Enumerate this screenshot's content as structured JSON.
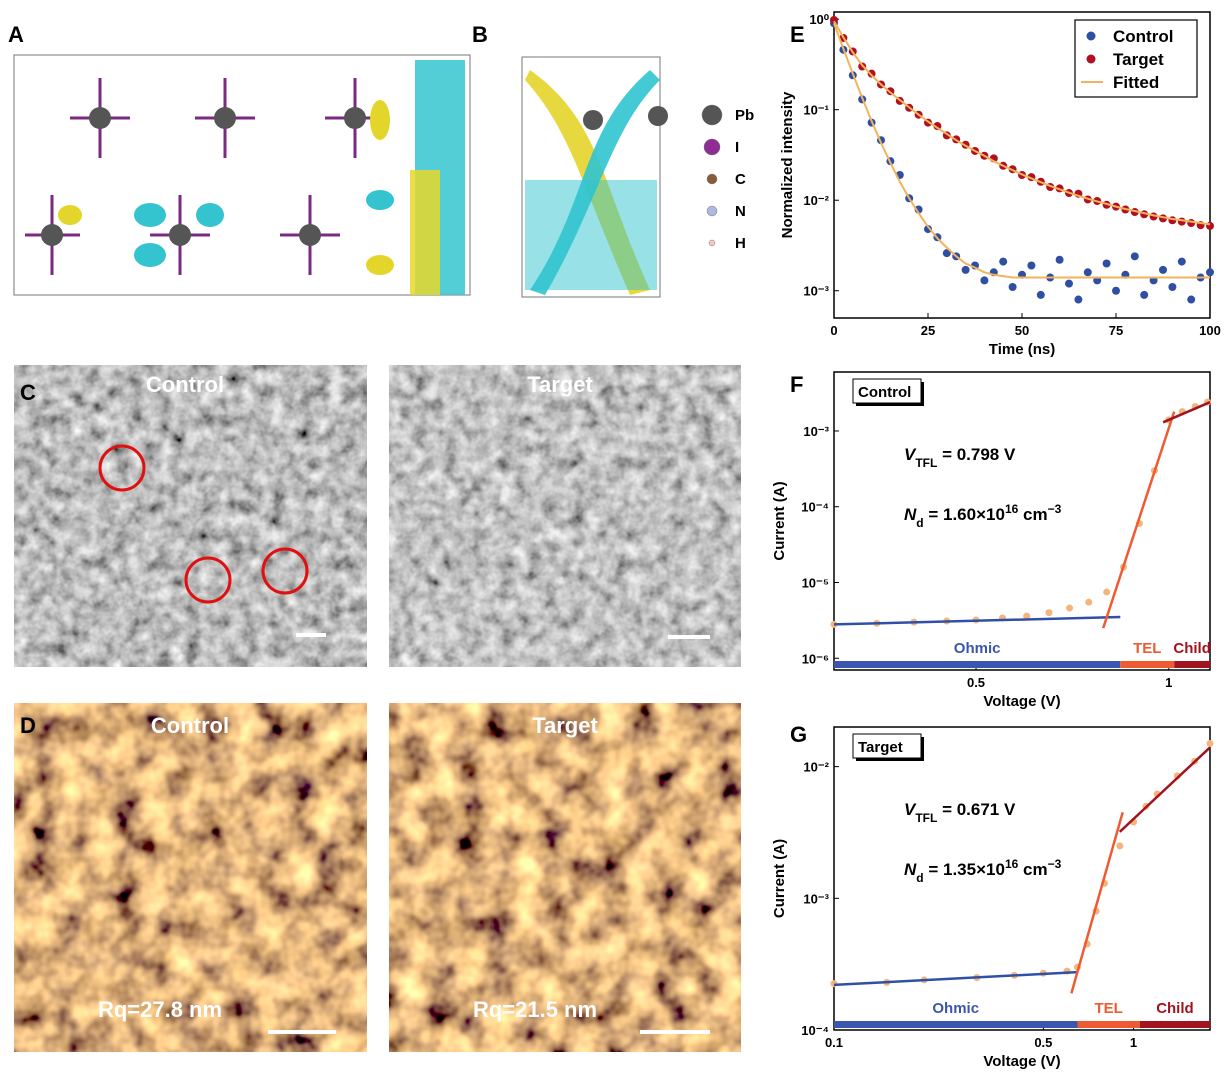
{
  "panel_labels": [
    "A",
    "B",
    "C",
    "D",
    "E",
    "F",
    "G"
  ],
  "structure_legend": [
    "Pb",
    "I",
    "C",
    "N",
    "H"
  ],
  "sem": {
    "images": [
      {
        "label": "Control"
      },
      {
        "label": "Target"
      }
    ]
  },
  "afm": {
    "images": [
      {
        "label": "Control",
        "roughness": "Rq=27.8 nm"
      },
      {
        "label": "Target",
        "roughness": "Rq=21.5 nm"
      }
    ]
  },
  "chart_data": [
    {
      "type": "scatter",
      "x_label": "Time (ns)",
      "y_label": "Normalized intensity",
      "log_y": true,
      "xlim": [
        0,
        100
      ],
      "ylim": [
        0.0005,
        1.2
      ],
      "xticks": [
        0,
        25,
        50,
        75,
        100
      ],
      "yticks": [
        {
          "value": 0.001,
          "label": "10⁻³"
        },
        {
          "value": 0.01,
          "label": "10⁻²"
        },
        {
          "value": 0.1,
          "label": "10⁻¹"
        },
        {
          "value": 1,
          "label": "10⁰"
        }
      ],
      "legend": "upper right",
      "fit_name": "Fitted",
      "fit_color": "#f2b35c",
      "x": [
        0,
        2.5,
        5,
        7.5,
        10,
        12.5,
        15,
        17.5,
        20,
        22.5,
        25,
        27.5,
        30,
        32.5,
        35,
        37.5,
        40,
        42.5,
        45,
        47.5,
        50,
        52.5,
        55,
        57.5,
        60,
        62.5,
        65,
        67.5,
        70,
        72.5,
        75,
        77.5,
        80,
        82.5,
        85,
        87.5,
        90,
        92.5,
        95,
        97.5,
        100
      ],
      "series": [
        {
          "name": "Control",
          "color": "#2f4fa3",
          "values": [
            0.9,
            0.46,
            0.24,
            0.13,
            0.072,
            0.046,
            0.027,
            0.019,
            0.0105,
            0.0079,
            0.0048,
            0.0039,
            0.0026,
            0.0024,
            0.0017,
            0.0019,
            0.0013,
            0.0016,
            0.0021,
            0.0011,
            0.0015,
            0.0019,
            0.0009,
            0.0014,
            0.0022,
            0.0012,
            0.0008,
            0.0016,
            0.0013,
            0.002,
            0.001,
            0.0015,
            0.0024,
            0.0009,
            0.0013,
            0.0017,
            0.0011,
            0.0021,
            0.0008,
            0.0014,
            0.0016
          ],
          "fit": [
            0.9,
            0.47,
            0.25,
            0.135,
            0.075,
            0.043,
            0.026,
            0.016,
            0.0105,
            0.0072,
            0.0051,
            0.0038,
            0.003,
            0.0024,
            0.002,
            0.0018,
            0.0016,
            0.0015,
            0.00145,
            0.0014,
            0.0014,
            0.0014,
            0.0014,
            0.0014,
            0.0014,
            0.0014,
            0.0014,
            0.0014,
            0.0014,
            0.0014,
            0.0014,
            0.0014,
            0.0014,
            0.0014,
            0.0014,
            0.0014,
            0.0014,
            0.0014,
            0.0014,
            0.0014,
            0.0014
          ]
        },
        {
          "name": "Target",
          "color": "#b3101f",
          "values": [
            0.98,
            0.62,
            0.44,
            0.3,
            0.25,
            0.19,
            0.16,
            0.125,
            0.105,
            0.088,
            0.072,
            0.066,
            0.052,
            0.047,
            0.041,
            0.035,
            0.031,
            0.029,
            0.024,
            0.022,
            0.019,
            0.018,
            0.016,
            0.014,
            0.0135,
            0.012,
            0.0118,
            0.0102,
            0.0098,
            0.0089,
            0.0085,
            0.0079,
            0.0074,
            0.007,
            0.0066,
            0.0063,
            0.006,
            0.0058,
            0.0056,
            0.0053,
            0.0052
          ],
          "fit": [
            0.95,
            0.63,
            0.43,
            0.31,
            0.24,
            0.19,
            0.155,
            0.128,
            0.106,
            0.088,
            0.074,
            0.063,
            0.054,
            0.046,
            0.04,
            0.035,
            0.031,
            0.027,
            0.024,
            0.0215,
            0.0193,
            0.0174,
            0.0158,
            0.0144,
            0.0132,
            0.0121,
            0.0112,
            0.0104,
            0.0097,
            0.0091,
            0.0085,
            0.008,
            0.0076,
            0.0072,
            0.0068,
            0.0065,
            0.0062,
            0.006,
            0.0058,
            0.0056,
            0.0054
          ]
        }
      ]
    },
    {
      "type": "scatter",
      "label": "Control",
      "x_label": "Voltage (V)",
      "y_label": "Current (A)",
      "log_x": true,
      "log_y": true,
      "xlim": [
        0.3,
        1.16
      ],
      "ylim": [
        7e-07,
        0.006
      ],
      "xticks": [
        0.5,
        1
      ],
      "yticks": [
        {
          "value": 1e-06,
          "label": "10⁻⁶"
        },
        {
          "value": 1e-05,
          "label": "10⁻⁵"
        },
        {
          "value": 0.0001,
          "label": "10⁻⁴"
        },
        {
          "value": 0.001,
          "label": "10⁻³"
        }
      ],
      "x": [
        0.3,
        0.35,
        0.4,
        0.45,
        0.5,
        0.55,
        0.6,
        0.65,
        0.7,
        0.75,
        0.8,
        0.85,
        0.9,
        0.95,
        1.0,
        1.05,
        1.1,
        1.15
      ],
      "series": [
        {
          "color": "#f5b57a",
          "values": [
            2.8e-06,
            2.9e-06,
            3e-06,
            3.1e-06,
            3.2e-06,
            3.4e-06,
            3.6e-06,
            4e-06,
            4.6e-06,
            5.5e-06,
            7.5e-06,
            1.6e-05,
            6e-05,
            0.0003,
            0.0014,
            0.0018,
            0.0021,
            0.0024
          ]
        }
      ],
      "fits": [
        {
          "color": "#3050a8",
          "x": [
            0.3,
            0.84
          ],
          "values": [
            2.8e-06,
            3.5e-06
          ]
        },
        {
          "color": "#ef5a32",
          "x": [
            0.79,
            1.02
          ],
          "values": [
            2.5e-06,
            0.0018
          ]
        },
        {
          "color": "#a3131f",
          "x": [
            0.98,
            1.16
          ],
          "values": [
            0.0013,
            0.0024
          ]
        }
      ],
      "regions": [
        {
          "label": "Ohmic",
          "color": "#3a56b0",
          "x": [
            0.3,
            0.84
          ]
        },
        {
          "label": "TEL",
          "color": "#ef5a32",
          "x": [
            0.84,
            1.02
          ]
        },
        {
          "label": "Child",
          "color": "#a3131f",
          "x": [
            1.02,
            1.16
          ]
        }
      ],
      "annotations": [
        {
          "parts": [
            {
              "text": "V",
              "style": "italic"
            },
            {
              "text": "TFL",
              "style": "sub"
            },
            {
              "text": " = 0.798 V"
            }
          ]
        },
        {
          "parts": [
            {
              "text": "N",
              "style": "italic"
            },
            {
              "text": "d",
              "style": "sub"
            },
            {
              "text": " = 1.60×10"
            },
            {
              "text": "16",
              "style": "sup"
            },
            {
              "text": " cm"
            },
            {
              "text": "−3",
              "style": "sup"
            }
          ]
        }
      ]
    },
    {
      "type": "scatter",
      "label": "Target",
      "x_label": "Voltage (V)",
      "y_label": "Current (A)",
      "log_x": true,
      "log_y": true,
      "xlim": [
        0.1,
        1.8
      ],
      "ylim": [
        0.0001,
        0.02
      ],
      "xticks": [
        0.1,
        0.5,
        1
      ],
      "yticks": [
        {
          "value": 0.0001,
          "label": "10⁻⁴"
        },
        {
          "value": 0.001,
          "label": "10⁻³"
        },
        {
          "value": 0.01,
          "label": "10⁻²"
        }
      ],
      "x": [
        0.1,
        0.15,
        0.2,
        0.3,
        0.4,
        0.5,
        0.6,
        0.65,
        0.7,
        0.75,
        0.8,
        0.9,
        1.0,
        1.1,
        1.2,
        1.4,
        1.6,
        1.8
      ],
      "series": [
        {
          "color": "#f5b57a",
          "values": [
            0.000225,
            0.00023,
            0.00024,
            0.00025,
            0.00026,
            0.00027,
            0.00028,
            0.0003,
            0.00045,
            0.0008,
            0.0013,
            0.0025,
            0.0038,
            0.005,
            0.0062,
            0.0085,
            0.011,
            0.015
          ]
        }
      ],
      "fits": [
        {
          "color": "#3050a8",
          "x": [
            0.1,
            0.65
          ],
          "values": [
            0.00022,
            0.000275
          ]
        },
        {
          "color": "#ef5a32",
          "x": [
            0.62,
            0.92
          ],
          "values": [
            0.00019,
            0.0045
          ]
        },
        {
          "color": "#a3131f",
          "x": [
            0.9,
            1.8
          ],
          "values": [
            0.0032,
            0.014
          ]
        }
      ],
      "regions": [
        {
          "label": "Ohmic",
          "color": "#3a56b0",
          "x": [
            0.1,
            0.65
          ]
        },
        {
          "label": "TEL",
          "color": "#ef5a32",
          "x": [
            0.65,
            1.05
          ]
        },
        {
          "label": "Child",
          "color": "#a3131f",
          "x": [
            1.05,
            1.8
          ]
        }
      ],
      "annotations": [
        {
          "parts": [
            {
              "text": "V",
              "style": "italic"
            },
            {
              "text": "TFL",
              "style": "sub"
            },
            {
              "text": " = 0.671 V"
            }
          ]
        },
        {
          "parts": [
            {
              "text": "N",
              "style": "italic"
            },
            {
              "text": "d",
              "style": "sub"
            },
            {
              "text": " = 1.35×10"
            },
            {
              "text": "16",
              "style": "sup"
            },
            {
              "text": " cm"
            },
            {
              "text": "−3",
              "style": "sup"
            }
          ]
        }
      ]
    }
  ]
}
